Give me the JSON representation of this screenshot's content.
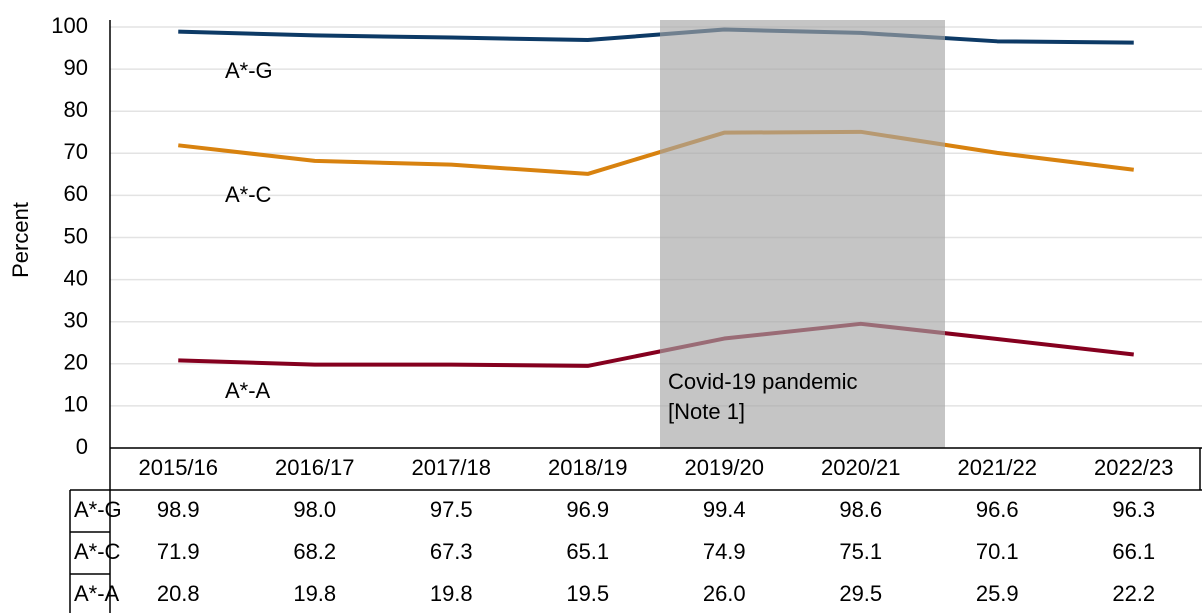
{
  "chart_data": {
    "type": "line",
    "y_label": "Percent",
    "categories": [
      "2015/16",
      "2016/17",
      "2017/18",
      "2018/19",
      "2019/20",
      "2020/21",
      "2021/22",
      "2022/23"
    ],
    "series": [
      {
        "name": "A*-G",
        "color": "#0d3a66",
        "values": [
          98.9,
          98.0,
          97.5,
          96.9,
          99.4,
          98.6,
          96.6,
          96.3
        ],
        "value_labels": [
          "98.9",
          "98.0",
          "97.5",
          "96.9",
          "99.4",
          "98.6",
          "96.6",
          "96.3"
        ]
      },
      {
        "name": "A*-C",
        "color": "#d8820f",
        "values": [
          71.9,
          68.2,
          67.3,
          65.1,
          74.9,
          75.1,
          70.1,
          66.1
        ],
        "value_labels": [
          "71.9",
          "68.2",
          "67.3",
          "65.1",
          "74.9",
          "75.1",
          "70.1",
          "66.1"
        ]
      },
      {
        "name": "A*-A",
        "color": "#85001f",
        "values": [
          20.8,
          19.8,
          19.8,
          19.5,
          26.0,
          29.5,
          25.9,
          22.2
        ],
        "value_labels": [
          "20.8",
          "19.8",
          "19.8",
          "19.5",
          "26.0",
          "29.5",
          "25.9",
          "22.2"
        ]
      }
    ],
    "ylim": [
      0,
      100
    ],
    "yticks": [
      0,
      10,
      20,
      30,
      40,
      50,
      60,
      70,
      80,
      90,
      100
    ],
    "grid": true,
    "shade": {
      "from": "2019/20",
      "to": "2020/21",
      "color": "#a6a6a6",
      "label": [
        "Covid-19 pandemic",
        "[Note 1]"
      ]
    }
  }
}
